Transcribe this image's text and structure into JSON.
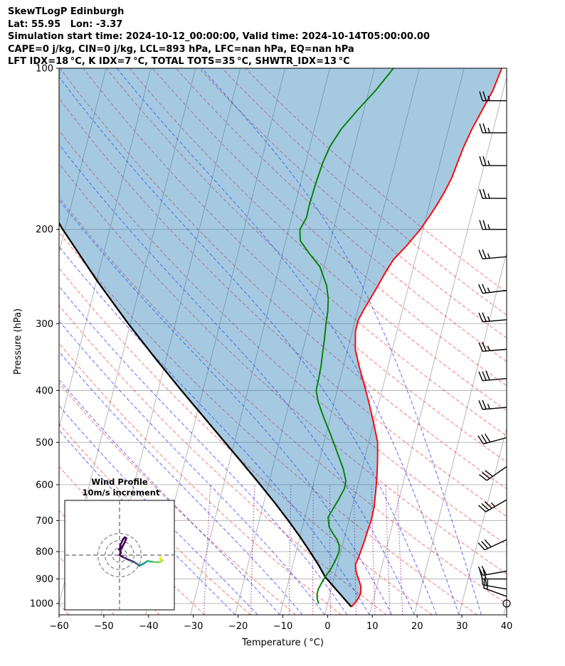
{
  "header": {
    "title": "SkewTLogP Edinburgh",
    "location": "Lat: 55.95   Lon: -3.37",
    "times": "Simulation start time: 2024-10-12_00:00:00, Valid time: 2024-10-14T05:00:00.00",
    "cape_line": "CAPE=0 j/kg, CIN=0 j/kg, LCL=893 hPa, LFC=nan hPa, EQ=nan hPa",
    "index_line": "LFT IDX=18 °C, K IDX=7 °C, TOTAL TOTS=35 °C, SHWTR_IDX=13 °C"
  },
  "chart_data": {
    "type": "skewt",
    "xlabel": "Temperature ($^\\circ$C)",
    "ylabel": "Pressure (hPa)",
    "xlim": [
      -60,
      40
    ],
    "ylim": [
      1050,
      100
    ],
    "x_ticks": [
      "−60",
      "−50",
      "−40",
      "−30",
      "−20",
      "−10",
      "0",
      "10",
      "20",
      "30",
      "40"
    ],
    "x_tick_values": [
      -60,
      -50,
      -40,
      -30,
      -20,
      -10,
      0,
      10,
      20,
      30,
      40
    ],
    "y_ticks": [
      "100",
      "200",
      "300",
      "400",
      "500",
      "600",
      "700",
      "800",
      "900",
      "1000"
    ],
    "y_tick_values": [
      100,
      200,
      300,
      400,
      500,
      600,
      700,
      800,
      900,
      1000
    ],
    "skew_degrees_per_log_decade": 30.5,
    "temperature_profile": {
      "color": "#ff0000",
      "points": [
        [
          1015,
          5.5
        ],
        [
          990,
          6.3
        ],
        [
          960,
          6.8
        ],
        [
          930,
          6.5
        ],
        [
          900,
          5.5
        ],
        [
          870,
          4.5
        ],
        [
          845,
          4.0
        ],
        [
          820,
          4.3
        ],
        [
          790,
          4.5
        ],
        [
          760,
          4.7
        ],
        [
          730,
          4.8
        ],
        [
          700,
          5.0
        ],
        [
          660,
          4.9
        ],
        [
          620,
          4.4
        ],
        [
          580,
          3.8
        ],
        [
          540,
          3.0
        ],
        [
          500,
          2.0
        ],
        [
          460,
          0.0
        ],
        [
          420,
          -2.3
        ],
        [
          390,
          -4.3
        ],
        [
          360,
          -6.5
        ],
        [
          335,
          -8.3
        ],
        [
          310,
          -9.3
        ],
        [
          295,
          -9.3
        ],
        [
          280,
          -8.5
        ],
        [
          260,
          -7.2
        ],
        [
          240,
          -5.9
        ],
        [
          228,
          -4.9
        ],
        [
          215,
          -2.8
        ],
        [
          200,
          -0.6
        ],
        [
          190,
          0.6
        ],
        [
          180,
          1.7
        ],
        [
          170,
          2.7
        ],
        [
          160,
          3.5
        ],
        [
          150,
          3.9
        ],
        [
          140,
          4.4
        ],
        [
          130,
          5.2
        ],
        [
          120,
          6.4
        ],
        [
          110,
          7.7
        ],
        [
          100,
          8.4
        ]
      ]
    },
    "dewpoint_profile": {
      "color": "#008000",
      "points": [
        [
          1000,
          -2.0
        ],
        [
          980,
          -2.6
        ],
        [
          960,
          -2.9
        ],
        [
          940,
          -2.9
        ],
        [
          920,
          -2.6
        ],
        [
          890,
          -2.0
        ],
        [
          860,
          -1.2
        ],
        [
          830,
          -0.7
        ],
        [
          800,
          -0.4
        ],
        [
          780,
          -0.7
        ],
        [
          760,
          -1.5
        ],
        [
          740,
          -2.8
        ],
        [
          720,
          -4.0
        ],
        [
          690,
          -4.8
        ],
        [
          670,
          -4.3
        ],
        [
          640,
          -3.5
        ],
        [
          610,
          -2.8
        ],
        [
          590,
          -2.9
        ],
        [
          560,
          -4.2
        ],
        [
          520,
          -6.6
        ],
        [
          480,
          -9.2
        ],
        [
          450,
          -11.4
        ],
        [
          420,
          -13.6
        ],
        [
          400,
          -14.7
        ],
        [
          380,
          -14.8
        ],
        [
          360,
          -15.0
        ],
        [
          340,
          -15.4
        ],
        [
          320,
          -15.8
        ],
        [
          300,
          -16.3
        ],
        [
          285,
          -16.6
        ],
        [
          270,
          -17.2
        ],
        [
          255,
          -18.3
        ],
        [
          235,
          -20.9
        ],
        [
          222,
          -24.0
        ],
        [
          210,
          -26.8
        ],
        [
          200,
          -27.5
        ],
        [
          190,
          -26.7
        ],
        [
          180,
          -26.8
        ],
        [
          165,
          -26.6
        ],
        [
          150,
          -26.2
        ],
        [
          140,
          -25.5
        ],
        [
          130,
          -24.0
        ],
        [
          120,
          -21.5
        ],
        [
          110,
          -18.5
        ],
        [
          100,
          -15.8
        ]
      ]
    },
    "parcel_profile": {
      "color": "#000000",
      "points": [
        [
          1015,
          5.5
        ],
        [
          893,
          -2.0
        ],
        [
          850,
          -4.1
        ],
        [
          800,
          -6.9
        ],
        [
          750,
          -10.0
        ],
        [
          700,
          -13.5
        ],
        [
          650,
          -17.4
        ],
        [
          600,
          -21.8
        ],
        [
          550,
          -26.7
        ],
        [
          500,
          -32.1
        ],
        [
          450,
          -38.1
        ],
        [
          400,
          -44.8
        ],
        [
          350,
          -52.2
        ],
        [
          300,
          -60.5
        ],
        [
          250,
          -69.8
        ],
        [
          200,
          -80.5
        ],
        [
          150,
          -93.0
        ],
        [
          100,
          -108.0
        ]
      ]
    },
    "shaded_area": {
      "between": [
        "parcel_profile",
        "temperature_profile"
      ],
      "color": "#1f77b4",
      "alpha": 0.4
    },
    "dry_adiabats_theta_K": [
      193,
      203,
      213,
      223,
      233,
      243,
      253,
      263,
      273,
      283,
      293,
      303,
      313,
      323,
      333,
      343,
      353,
      363,
      373,
      383,
      393,
      403,
      413,
      423,
      433
    ],
    "moist_adiabats_C": [
      -20,
      -15,
      -10,
      -5,
      0,
      5,
      10,
      15,
      20,
      25,
      30,
      35
    ],
    "mixing_ratio_lines_gkg": [
      0.4,
      1,
      2,
      3,
      4,
      6,
      8,
      10,
      12
    ],
    "wind_barbs": [
      {
        "p": 1000,
        "speed_kt": 4,
        "dir_deg": 300
      },
      {
        "p": 970,
        "speed_kt": 18,
        "dir_deg": 290
      },
      {
        "p": 940,
        "speed_kt": 22,
        "dir_deg": 280
      },
      {
        "p": 900,
        "speed_kt": 20,
        "dir_deg": 270
      },
      {
        "p": 870,
        "speed_kt": 18,
        "dir_deg": 260
      },
      {
        "p": 760,
        "speed_kt": 28,
        "dir_deg": 245
      },
      {
        "p": 640,
        "speed_kt": 33,
        "dir_deg": 240
      },
      {
        "p": 555,
        "speed_kt": 32,
        "dir_deg": 235
      },
      {
        "p": 490,
        "speed_kt": 28,
        "dir_deg": 255
      },
      {
        "p": 430,
        "speed_kt": 27,
        "dir_deg": 265
      },
      {
        "p": 380,
        "speed_kt": 28,
        "dir_deg": 265
      },
      {
        "p": 335,
        "speed_kt": 27,
        "dir_deg": 265
      },
      {
        "p": 295,
        "speed_kt": 27,
        "dir_deg": 265
      },
      {
        "p": 260,
        "speed_kt": 26,
        "dir_deg": 263
      },
      {
        "p": 225,
        "speed_kt": 26,
        "dir_deg": 265
      },
      {
        "p": 200,
        "speed_kt": 25,
        "dir_deg": 270
      },
      {
        "p": 175,
        "speed_kt": 25,
        "dir_deg": 270
      },
      {
        "p": 152,
        "speed_kt": 25,
        "dir_deg": 270
      },
      {
        "p": 132,
        "speed_kt": 25,
        "dir_deg": 270
      },
      {
        "p": 115,
        "speed_kt": 25,
        "dir_deg": 270
      }
    ],
    "hodograph": {
      "title": "Wind Profile",
      "subtitle": "10m/s increment",
      "ring_increment_ms": 10,
      "rings": 3,
      "uv_points": [
        [
          0.0,
          0.0
        ],
        [
          1.0,
          -0.6
        ],
        [
          2.6,
          -1.4
        ],
        [
          4.1,
          -2.2
        ],
        [
          6.1,
          -3.0
        ],
        [
          7.6,
          -3.6
        ],
        [
          9.2,
          -4.5
        ],
        [
          10.6,
          -5.5
        ],
        [
          11.2,
          -6.0
        ],
        [
          12.0,
          -5.5
        ],
        [
          13.6,
          -4.8
        ],
        [
          15.7,
          -3.3
        ],
        [
          17.2,
          -3.6
        ],
        [
          19.0,
          -3.8
        ],
        [
          21.2,
          -4.0
        ],
        [
          23.0,
          -3.8
        ],
        [
          24.1,
          -3.0
        ],
        [
          22.8,
          -2.2
        ],
        [
          23.0,
          -1.0
        ]
      ],
      "meander_points": [
        [
          0.0,
          0.0
        ],
        [
          0.8,
          1.3
        ],
        [
          0.4,
          2.6
        ],
        [
          1.2,
          4.0
        ],
        [
          2.0,
          5.5
        ],
        [
          2.8,
          6.9
        ],
        [
          3.4,
          8.4
        ],
        [
          3.8,
          9.5
        ],
        [
          2.9,
          10.0
        ],
        [
          1.8,
          8.7
        ],
        [
          1.3,
          7.3
        ],
        [
          0.5,
          6.0
        ],
        [
          0.6,
          4.4
        ],
        [
          -0.4,
          3.2
        ]
      ]
    }
  }
}
